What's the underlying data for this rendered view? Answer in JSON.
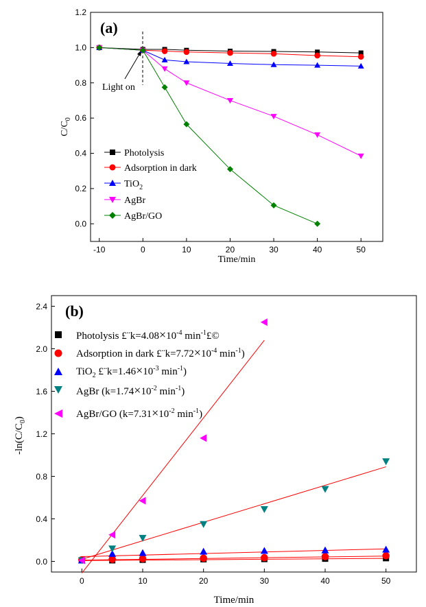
{
  "chart_data": [
    {
      "type": "line",
      "panel_label": "(a)",
      "xlabel": "Time/min",
      "ylabel": "C/C0",
      "xlim": [
        -12,
        55
      ],
      "ylim": [
        -0.1,
        1.2
      ],
      "xticks": [
        -10,
        0,
        10,
        20,
        30,
        40,
        50
      ],
      "yticks": [
        0.0,
        0.2,
        0.4,
        0.6,
        0.8,
        1.0,
        1.2
      ],
      "xtick_labels": [
        "-10",
        "0",
        "10",
        "20",
        "30",
        "40",
        "50"
      ],
      "ytick_labels": [
        "0.0",
        "0.2",
        "0.4",
        "0.6",
        "0.8",
        "1.0",
        "1.2"
      ],
      "annotation": "Light on",
      "legend_position": "lower-left",
      "series": [
        {
          "name": "Photolysis",
          "marker": "square",
          "color": "#000000",
          "x": [
            -10,
            0,
            5,
            10,
            20,
            30,
            40,
            50
          ],
          "y": [
            1.0,
            0.99,
            0.99,
            0.985,
            0.98,
            0.978,
            0.975,
            0.97
          ]
        },
        {
          "name": "Adsorption in dark",
          "marker": "circle",
          "color": "#ff0000",
          "x": [
            -10,
            0,
            5,
            10,
            20,
            30,
            40,
            50
          ],
          "y": [
            1.0,
            0.985,
            0.98,
            0.975,
            0.97,
            0.965,
            0.955,
            0.948
          ]
        },
        {
          "name": "TiO",
          "name_sub": "2",
          "marker": "triangle-up",
          "color": "#0000ff",
          "x": [
            -10,
            0,
            5,
            10,
            20,
            30,
            40,
            50
          ],
          "y": [
            1.0,
            0.985,
            0.93,
            0.92,
            0.91,
            0.903,
            0.9,
            0.895
          ]
        },
        {
          "name": "AgBr",
          "marker": "triangle-down",
          "color": "#ff00ff",
          "x": [
            -10,
            0,
            5,
            10,
            20,
            30,
            40,
            50
          ],
          "y": [
            1.0,
            0.985,
            0.88,
            0.8,
            0.7,
            0.61,
            0.505,
            0.385
          ]
        },
        {
          "name": "AgBr/GO",
          "marker": "diamond",
          "color": "#008000",
          "x": [
            -10,
            0,
            5,
            10,
            20,
            30,
            40
          ],
          "y": [
            1.0,
            0.985,
            0.775,
            0.565,
            0.31,
            0.105,
            0.0
          ]
        }
      ]
    },
    {
      "type": "scatter",
      "panel_label": "(b)",
      "xlabel": "Time/min",
      "ylabel": "-ln(C/C0)",
      "xlim": [
        -5,
        55
      ],
      "ylim": [
        -0.1,
        2.5
      ],
      "xticks": [
        0,
        10,
        20,
        30,
        40,
        50
      ],
      "yticks": [
        0.0,
        0.4,
        0.8,
        1.2,
        1.6,
        2.0,
        2.4
      ],
      "xtick_labels": [
        "0",
        "10",
        "20",
        "30",
        "40",
        "50"
      ],
      "ytick_labels": [
        "0.0",
        "0.4",
        "0.8",
        "1.2",
        "1.6",
        "2.0",
        "2.4"
      ],
      "legend_position": "top-left",
      "series": [
        {
          "legend": "Photolysis £¨k=4.08×10-4 min-1£©",
          "marker": "square",
          "color": "#000000",
          "x": [
            0,
            5,
            10,
            20,
            30,
            40,
            50
          ],
          "y": [
            0.01,
            0.01,
            0.015,
            0.02,
            0.022,
            0.025,
            0.03
          ],
          "fit": [
            [
              0,
              0.008
            ],
            [
              50,
              0.028
            ]
          ]
        },
        {
          "legend": "Adsorption in dark £¨k=7.72×10-4 min-1)",
          "marker": "circle",
          "color": "#ff0000",
          "x": [
            0,
            5,
            10,
            20,
            30,
            40,
            50
          ],
          "y": [
            0.015,
            0.02,
            0.025,
            0.03,
            0.035,
            0.045,
            0.053
          ],
          "fit": [
            [
              0,
              0.012
            ],
            [
              50,
              0.05
            ]
          ]
        },
        {
          "legend": "TiO2 £¨k=1.46×10-3 min-1)",
          "marker": "triangle-up",
          "color": "#0000ff",
          "x": [
            0,
            5,
            10,
            20,
            30,
            40,
            50
          ],
          "y": [
            0.01,
            0.072,
            0.08,
            0.093,
            0.1,
            0.105,
            0.112
          ],
          "fit": [
            [
              0,
              0.045
            ],
            [
              50,
              0.118
            ]
          ]
        },
        {
          "legend": "AgBr (k=1.74×10-2 min-1)",
          "marker": "triangle-down",
          "color": "#008080",
          "x": [
            0,
            5,
            10,
            20,
            30,
            40,
            50
          ],
          "y": [
            0.01,
            0.12,
            0.22,
            0.35,
            0.49,
            0.68,
            0.94
          ],
          "fit": [
            [
              0,
              0.02
            ],
            [
              50,
              0.89
            ]
          ]
        },
        {
          "legend": "AgBr/GO (k=7.31×10-2 min-1)",
          "marker": "triangle-left",
          "color": "#ff00ff",
          "x": [
            0,
            5,
            10,
            20,
            30
          ],
          "y": [
            0.01,
            0.25,
            0.57,
            1.16,
            2.25
          ],
          "fit": [
            [
              0,
              -0.11
            ],
            [
              30,
              2.08
            ]
          ]
        }
      ]
    }
  ],
  "legend_a": {
    "photolysis": "Photolysis",
    "adsorption": "Adsorption in dark",
    "tio2": "TiO",
    "tio2_sub": "2",
    "agbr": "AgBr",
    "agbrgo": "AgBr/GO"
  },
  "legend_b": {
    "photolysis_pre": "Photolysis £¨k=4.08",
    "photolysis_times": "×",
    "photolysis_base": "10",
    "photolysis_exp": "-4",
    "photolysis_unit": " min",
    "photolysis_unit_exp": "-1",
    "photolysis_post": "£©",
    "adsorption_pre": "Adsorption in dark £¨k=7.72",
    "adsorption_times": "×",
    "adsorption_base": "10",
    "adsorption_exp": "-4",
    "adsorption_unit": " min",
    "adsorption_unit_exp": "-1",
    "adsorption_post": ")",
    "tio2_pre": "TiO",
    "tio2_sub": "2",
    "tio2_mid": " £¨k=1.46",
    "tio2_times": "×",
    "tio2_base": "10",
    "tio2_exp": "-3",
    "tio2_unit": " min",
    "tio2_unit_exp": "-1",
    "tio2_post": ")",
    "agbr_pre": "AgBr (k=1.74",
    "agbr_times": "×",
    "agbr_base": "10",
    "agbr_exp": "-2",
    "agbr_unit": " min",
    "agbr_unit_exp": "-1",
    "agbr_post": ")",
    "agbrgo_pre": "AgBr/GO (k=7.31",
    "agbrgo_times": "×",
    "agbrgo_base": "10",
    "agbrgo_exp": "-2",
    "agbrgo_unit": " min",
    "agbrgo_unit_exp": "-1",
    "agbrgo_post": ")"
  },
  "axis_text": {
    "a_ylabel_main": "C/C",
    "a_ylabel_sub": "0",
    "b_ylabel_main": "-ln(C/C",
    "b_ylabel_sub": "0",
    "b_ylabel_end": ")"
  }
}
